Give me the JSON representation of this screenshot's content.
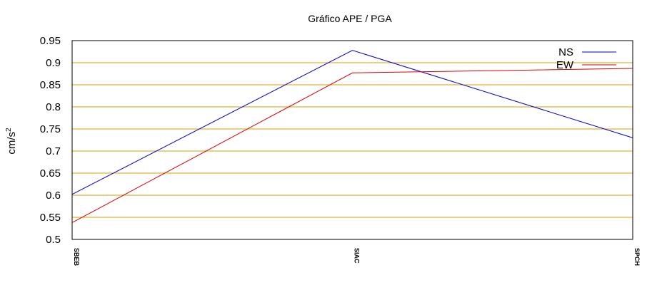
{
  "chart_data": {
    "type": "line",
    "title": "Gráfico  APE / PGA",
    "ylabel_base": "cm/s",
    "ylabel_exp": "2",
    "xlabel": "",
    "categories": [
      "SBEB",
      "SIAC",
      "SPCH"
    ],
    "ylim": [
      0.5,
      0.95
    ],
    "yticks": [
      "0.5",
      "0.55",
      "0.6",
      "0.65",
      "0.7",
      "0.75",
      "0.8",
      "0.85",
      "0.9",
      "0.95"
    ],
    "grid": true,
    "grid_color": "#d4a000",
    "legend_position": "top-right",
    "series": [
      {
        "name": "NS",
        "color": "#0000cc",
        "values": [
          0.602,
          0.928,
          0.73
        ]
      },
      {
        "name": "EW",
        "color": "#dd0000",
        "values": [
          0.538,
          0.877,
          0.887
        ]
      }
    ]
  }
}
